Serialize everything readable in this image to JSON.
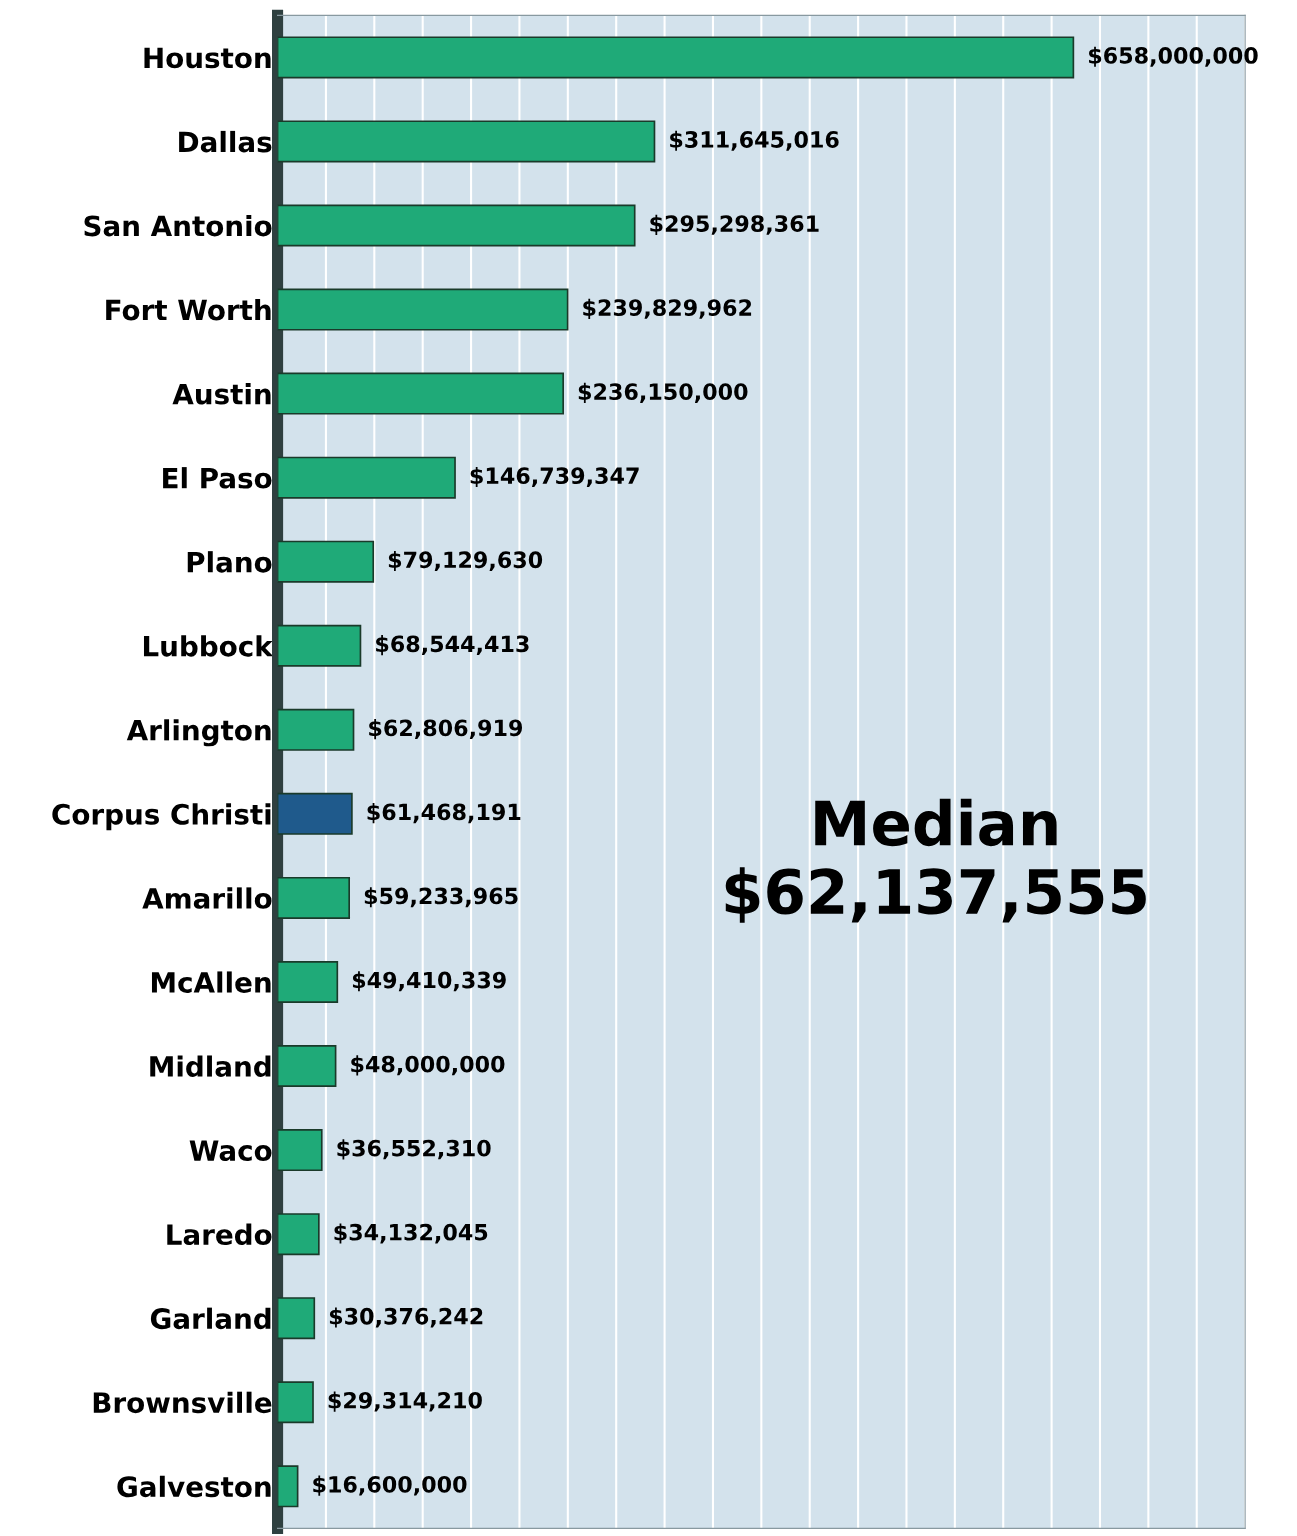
{
  "chart_data": {
    "type": "bar",
    "orientation": "horizontal",
    "categories": [
      "Houston",
      "Dallas",
      "San Antonio",
      "Fort Worth",
      "Austin",
      "El Paso",
      "Plano",
      "Lubbock",
      "Arlington",
      "Corpus Christi",
      "Amarillo",
      "McAllen",
      "Midland",
      "Waco",
      "Laredo",
      "Garland",
      "Brownsville",
      "Galveston"
    ],
    "values": [
      658000000,
      311645016,
      295298361,
      239829962,
      236150000,
      146739347,
      79129630,
      68544413,
      62806919,
      61468191,
      59233965,
      49410339,
      48000000,
      36552310,
      34132045,
      30376242,
      29314210,
      16600000
    ],
    "colors": [
      "#1faa78",
      "#1faa78",
      "#1faa78",
      "#1faa78",
      "#1faa78",
      "#1faa78",
      "#1faa78",
      "#1faa78",
      "#1faa78",
      "#1f5a8c",
      "#1faa78",
      "#1faa78",
      "#1faa78",
      "#1faa78",
      "#1faa78",
      "#1faa78",
      "#1faa78",
      "#1faa78"
    ],
    "value_labels": [
      "$658,000,000",
      "$311,645,016",
      "$295,298,361",
      "$239,829,962",
      "$236,150,000",
      "$146,739,347",
      "$79,129,630",
      "$68,544,413",
      "$62,806,919",
      "$61,468,191",
      "$59,233,965",
      "$49,410,339",
      "$48,000,000",
      "$36,552,310",
      "$34,132,045",
      "$30,376,242",
      "$29,314,210",
      "$16,600,000"
    ],
    "xlim": [
      0,
      800000000
    ],
    "xticks": [
      {
        "value": 0,
        "label": null
      },
      {
        "value": 40000000,
        "label": null
      },
      {
        "value": 80000000,
        "label": null
      },
      {
        "value": 120000000,
        "label": null
      },
      {
        "value": 160000000,
        "label": null
      },
      {
        "value": 200000000,
        "label": null
      },
      {
        "value": 240000000,
        "label": null
      },
      {
        "value": 280000000,
        "label": null
      },
      {
        "value": 320000000,
        "label": null
      },
      {
        "value": 360000000,
        "label": null
      },
      {
        "value": 400000000,
        "label": null
      },
      {
        "value": 440000000,
        "label": null
      },
      {
        "value": 480000000,
        "label": null
      },
      {
        "value": 520000000,
        "label": null
      },
      {
        "value": 560000000,
        "label": null
      },
      {
        "value": 600000000,
        "label": null
      },
      {
        "value": 640000000,
        "label": null
      },
      {
        "value": 680000000,
        "label": null
      },
      {
        "value": 720000000,
        "label": null
      },
      {
        "value": 760000000,
        "label": null
      },
      {
        "value": 800000000,
        "label": null
      }
    ],
    "grid": "x",
    "tick_labels": "y",
    "legend": false,
    "annotations": [
      "Median\n$62,137,555"
    ]
  }
}
